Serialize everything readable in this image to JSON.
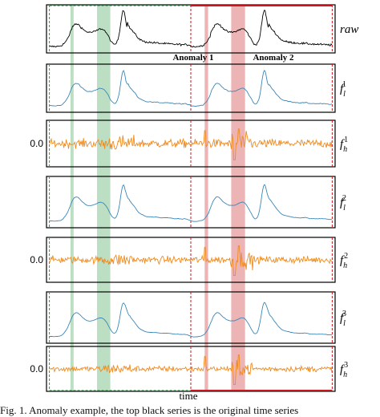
{
  "figure": {
    "caption": "Fig. 1.   Anomaly example, the top black series is the original time series"
  },
  "chart_data": {
    "type": "line",
    "x_axis_label": "time",
    "annotations": [
      "Anomaly 1",
      "Anomaly 2"
    ],
    "colors": {
      "raw": "#000000",
      "low": "#3a86b8",
      "high": "#f08a1c",
      "normal_region": "#2e9b48",
      "anomaly_region": "#c8161d"
    },
    "panels": [
      {
        "id": "raw",
        "label_main": "raw",
        "label_sub": "",
        "label_sup": "",
        "kind": "raw",
        "zero_label": ""
      },
      {
        "id": "fl1",
        "label_main": "f",
        "label_sub": "l",
        "label_sup": "1",
        "kind": "low",
        "zero_label": ""
      },
      {
        "id": "fh1",
        "label_main": "f",
        "label_sub": "h",
        "label_sup": "1",
        "kind": "high",
        "zero_label": "0.0"
      },
      {
        "id": "fl2",
        "label_main": "f",
        "label_sub": "l",
        "label_sup": "2",
        "kind": "low",
        "zero_label": ""
      },
      {
        "id": "fh2",
        "label_main": "f",
        "label_sub": "h",
        "label_sup": "2",
        "kind": "high",
        "zero_label": "0.0"
      },
      {
        "id": "fl3",
        "label_main": "f",
        "label_sub": "l",
        "label_sup": "3",
        "kind": "low",
        "zero_label": ""
      },
      {
        "id": "fh3",
        "label_main": "f",
        "label_sub": "h",
        "label_sup": "3",
        "kind": "high",
        "zero_label": "0.0"
      }
    ]
  }
}
